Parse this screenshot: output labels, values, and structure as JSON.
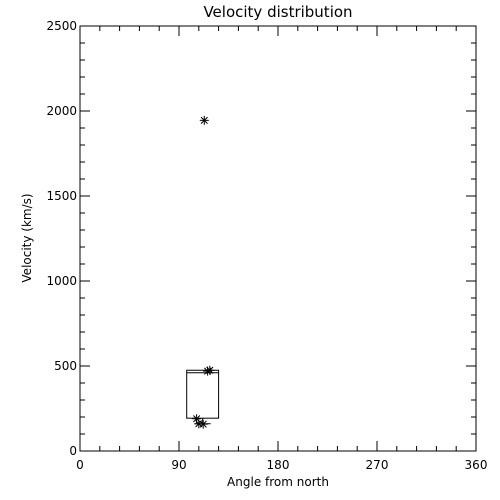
{
  "chart_data": {
    "type": "scatter",
    "title": "Velocity distribution",
    "xlabel": "Angle from north",
    "ylabel": "Velocity (km/s)",
    "xlim": [
      0,
      360
    ],
    "ylim": [
      0,
      2500
    ],
    "xticks": [
      0,
      90,
      180,
      270,
      360
    ],
    "yticks": [
      0,
      500,
      1000,
      1500,
      2000,
      2500
    ],
    "x_minor_step": 18,
    "y_minor_step": 100,
    "grid": false,
    "marker": "asterisk",
    "color": "#000000",
    "points": [
      {
        "x": 113,
        "y": 1945
      },
      {
        "x": 116,
        "y": 470
      },
      {
        "x": 118,
        "y": 475
      },
      {
        "x": 106,
        "y": 190
      },
      {
        "x": 108,
        "y": 160
      },
      {
        "x": 112,
        "y": 158
      }
    ],
    "box": {
      "x_min": 97,
      "x_max": 126,
      "y_min": 193,
      "y_max": 475,
      "median": 460,
      "whisker_low": 160,
      "whisker_high": 475
    }
  }
}
